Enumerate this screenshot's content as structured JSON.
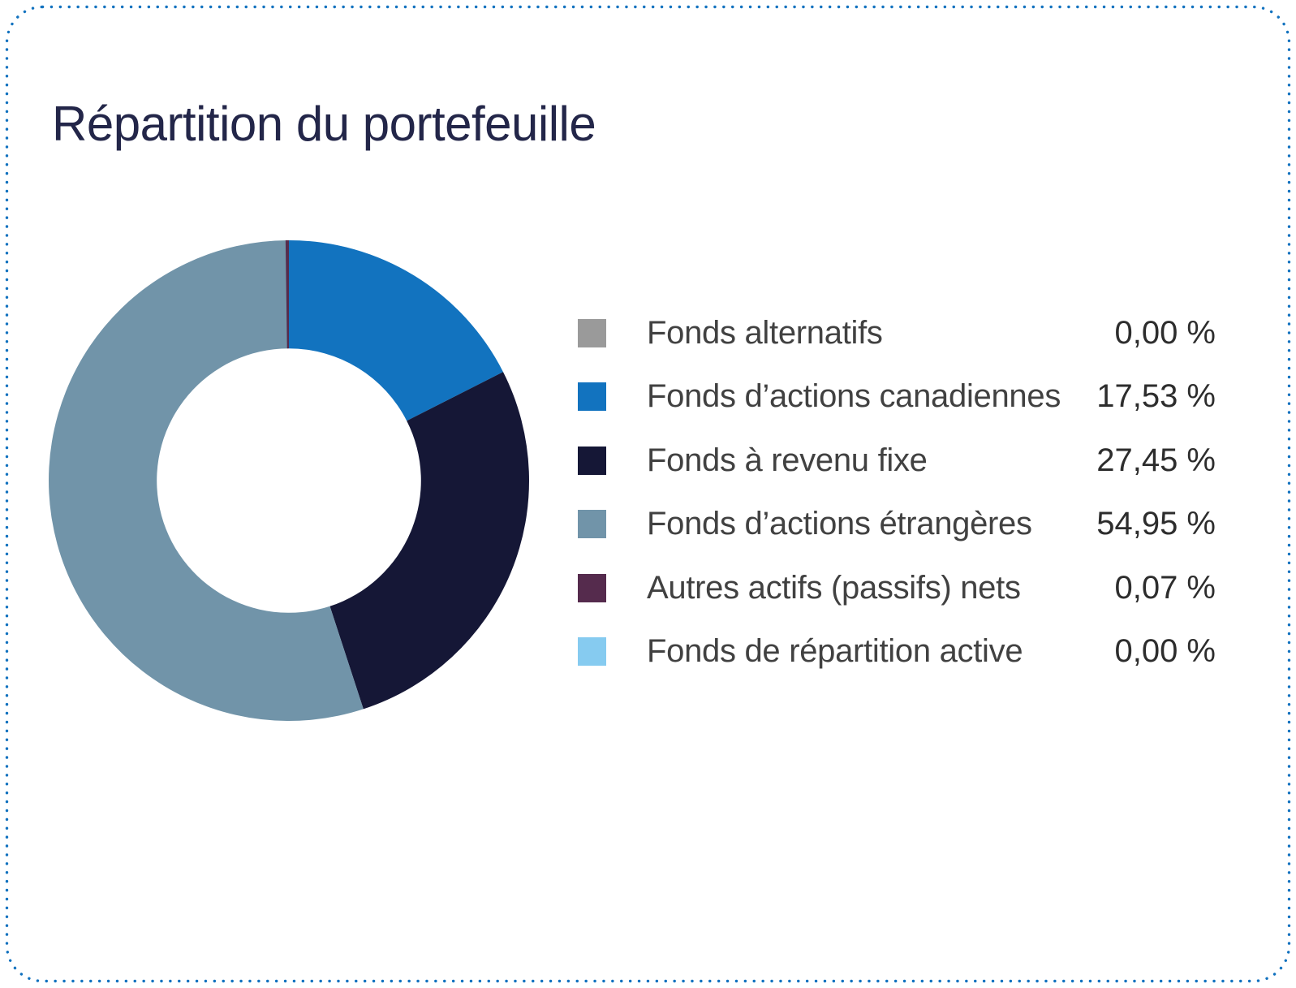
{
  "card": {
    "title": "Répartition du portefeuille",
    "border_color": "#1272BF",
    "title_color": "#232649",
    "background": "#FFFFFF"
  },
  "chart_data": {
    "type": "pie",
    "variant": "donut",
    "title": "Répartition du portefeuille",
    "start_angle_deg": 0,
    "direction": "clockwise",
    "inner_radius_ratio": 0.55,
    "legend_position": "right",
    "categories": [
      "Fonds alternatifs",
      "Fonds d’actions canadiennes",
      "Fonds à revenu fixe",
      "Fonds d’actions étrangères",
      "Autres actifs (passifs) nets",
      "Fonds de répartition active"
    ],
    "values": [
      0.0,
      17.53,
      27.45,
      54.95,
      0.07,
      0.0
    ],
    "value_labels": [
      "0,00 %",
      "17,53 %",
      "27,45 %",
      "54,95 %",
      "0,07 %",
      "0,00 %"
    ],
    "colors": [
      "#9A9A9A",
      "#1273BF",
      "#151736",
      "#7194A9",
      "#552B4D",
      "#86CBF0"
    ]
  },
  "legend": {
    "rows": [
      {
        "label": "Fonds alternatifs",
        "value": "0,00 %"
      },
      {
        "label": "Fonds d’actions canadiennes",
        "value": "17,53 %"
      },
      {
        "label": "Fonds à revenu fixe",
        "value": "27,45 %"
      },
      {
        "label": "Fonds d’actions étrangères",
        "value": "54,95 %"
      },
      {
        "label": "Autres actifs (passifs) nets",
        "value": "0,07 %"
      },
      {
        "label": "Fonds de répartition active",
        "value": "0,00 %"
      }
    ]
  }
}
